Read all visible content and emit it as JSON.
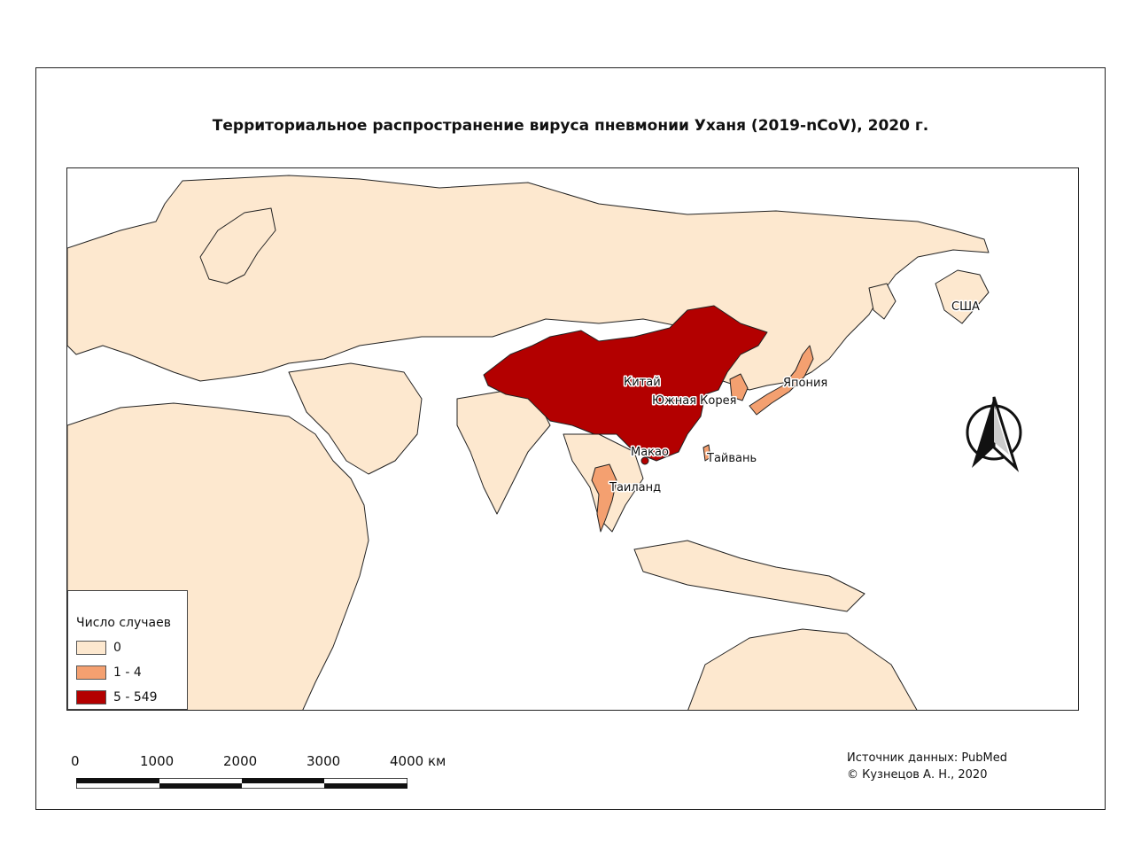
{
  "title": "Территориальное распространение вируса пневмонии Уханя (2019-nCoV), 2020 г.",
  "colors": {
    "zero": "#fde8cf",
    "low": "#f4a070",
    "high": "#b30000",
    "border": "#222222",
    "sea": "#ffffff"
  },
  "legend": {
    "title": "Число случаев",
    "classes": [
      {
        "label": "0",
        "color": "#fde8cf"
      },
      {
        "label": "1 - 4",
        "color": "#f4a070"
      },
      {
        "label": "5 - 549",
        "color": "#b30000"
      }
    ]
  },
  "map_data": {
    "labels": {
      "china": "Китай",
      "korea": "Южная Корея",
      "japan": "Япония",
      "macao": "Макао",
      "taiwan": "Тайвань",
      "thailand": "Таиланд",
      "usa": "США"
    }
  },
  "scale_bar": {
    "ticks": [
      "0",
      "1000",
      "2000",
      "3000",
      "4000 км"
    ]
  },
  "source": {
    "line1": "Источник данных: PubMed",
    "line2": "© Кузнецов А. Н., 2020"
  },
  "north_arrow_icon": "north-arrow-icon"
}
